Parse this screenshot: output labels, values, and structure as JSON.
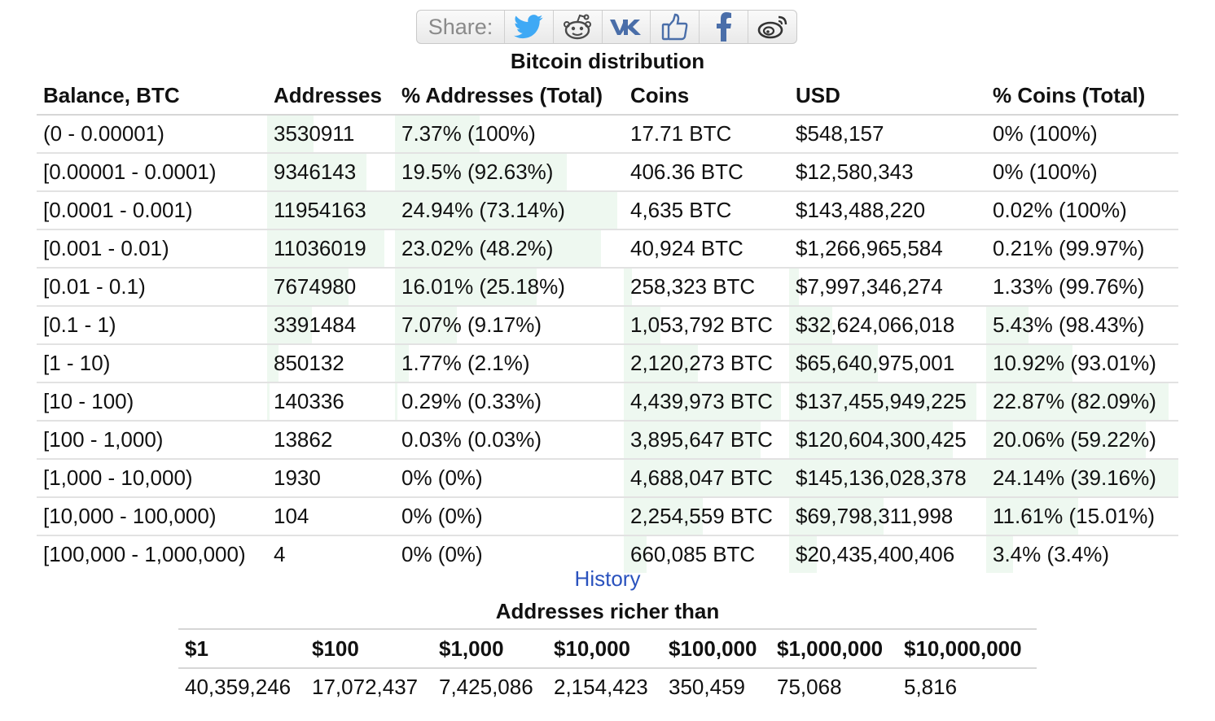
{
  "share": {
    "label": "Share:",
    "buttons": [
      {
        "icon": "twitter-icon",
        "color": "#3fa9f5"
      },
      {
        "icon": "reddit-icon",
        "color": "#4a4a4a"
      },
      {
        "icon": "vk-icon",
        "color": "#4a6ea9"
      },
      {
        "icon": "thumbs-up-icon",
        "color": "#4a6ea9"
      },
      {
        "icon": "facebook-icon",
        "color": "#4a6ea9"
      },
      {
        "icon": "weibo-icon",
        "color": "#333333"
      }
    ]
  },
  "distribution": {
    "title": "Bitcoin distribution",
    "headers": [
      "Balance, BTC",
      "Addresses",
      "% Addresses (Total)",
      "Coins",
      "USD",
      "% Coins (Total)"
    ],
    "rows": [
      {
        "balance": "(0 - 0.00001)",
        "addresses": "3530911",
        "pct_addresses": "7.37% (100%)",
        "coins": "17.71 BTC",
        "usd": "$548,157",
        "pct_coins": "0% (100%)",
        "bars": [
          0.36,
          0.37,
          0,
          0,
          0
        ]
      },
      {
        "balance": "[0.00001 - 0.0001)",
        "addresses": "9346143",
        "pct_addresses": "19.5% (92.63%)",
        "coins": "406.36 BTC",
        "usd": "$12,580,343",
        "pct_coins": "0% (100%)",
        "bars": [
          0.78,
          0.75,
          0,
          0,
          0
        ]
      },
      {
        "balance": "[0.0001 - 0.001)",
        "addresses": "11954163",
        "pct_addresses": "24.94% (73.14%)",
        "coins": "4,635 BTC",
        "usd": "$143,488,220",
        "pct_coins": "0.02% (100%)",
        "bars": [
          1.0,
          0.97,
          0,
          0,
          0
        ]
      },
      {
        "balance": "[0.001 - 0.01)",
        "addresses": "11036019",
        "pct_addresses": "23.02% (48.2%)",
        "coins": "40,924 BTC",
        "usd": "$1,266,965,584",
        "pct_coins": "0.21% (99.97%)",
        "bars": [
          0.92,
          0.9,
          0,
          0,
          0
        ]
      },
      {
        "balance": "[0.01 - 0.1)",
        "addresses": "7674980",
        "pct_addresses": "16.01% (25.18%)",
        "coins": "258,323 BTC",
        "usd": "$7,997,346,274",
        "pct_coins": "1.33% (99.76%)",
        "bars": [
          0.64,
          0.62,
          0.05,
          0.05,
          0
        ]
      },
      {
        "balance": "[0.1 - 1)",
        "addresses": "3391484",
        "pct_addresses": "7.07% (9.17%)",
        "coins": "1,053,792 BTC",
        "usd": "$32,624,066,018",
        "pct_coins": "5.43% (98.43%)",
        "bars": [
          0.35,
          0.27,
          0.22,
          0.22,
          0.22
        ]
      },
      {
        "balance": "[1 - 10)",
        "addresses": "850132",
        "pct_addresses": "1.77% (2.1%)",
        "coins": "2,120,273 BTC",
        "usd": "$65,640,975,001",
        "pct_coins": "10.92% (93.01%)",
        "bars": [
          0.09,
          0.06,
          0.45,
          0.45,
          0.45
        ]
      },
      {
        "balance": "[10 - 100)",
        "addresses": "140336",
        "pct_addresses": "0.29% (0.33%)",
        "coins": "4,439,973 BTC",
        "usd": "$137,455,949,225",
        "pct_coins": "22.87% (82.09%)",
        "bars": [
          0.02,
          0.01,
          0.95,
          0.95,
          0.95
        ]
      },
      {
        "balance": "[100 - 1,000)",
        "addresses": "13862",
        "pct_addresses": "0.03% (0.03%)",
        "coins": "3,895,647 BTC",
        "usd": "$120,604,300,425",
        "pct_coins": "20.06% (59.22%)",
        "bars": [
          0,
          0,
          0.83,
          0.83,
          0.83
        ]
      },
      {
        "balance": "[1,000 - 10,000)",
        "addresses": "1930",
        "pct_addresses": "0% (0%)",
        "coins": "4,688,047 BTC",
        "usd": "$145,136,028,378",
        "pct_coins": "24.14% (39.16%)",
        "bars": [
          0,
          0,
          1.0,
          1.0,
          1.0
        ]
      },
      {
        "balance": "[10,000 - 100,000)",
        "addresses": "104",
        "pct_addresses": "0% (0%)",
        "coins": "2,254,559 BTC",
        "usd": "$69,798,311,998",
        "pct_coins": "11.61% (15.01%)",
        "bars": [
          0,
          0,
          0.48,
          0.48,
          0.48
        ]
      },
      {
        "balance": "[100,000 - 1,000,000)",
        "addresses": "4",
        "pct_addresses": "0% (0%)",
        "coins": "660,085 BTC",
        "usd": "$20,435,400,406",
        "pct_coins": "3.4% (3.4%)",
        "bars": [
          0,
          0,
          0.14,
          0.14,
          0.14
        ]
      }
    ],
    "bar_color": "#eef8f0"
  },
  "history_link": "History",
  "richer": {
    "title": "Addresses richer than",
    "headers": [
      "$1",
      "$100",
      "$1,000",
      "$10,000",
      "$100,000",
      "$1,000,000",
      "$10,000,000"
    ],
    "values": [
      "40,359,246",
      "17,072,437",
      "7,425,086",
      "2,154,423",
      "350,459",
      "75,068",
      "5,816"
    ]
  },
  "colors": {
    "link": "#2a52be",
    "text": "#111111",
    "share_label": "#8a8a8a"
  }
}
